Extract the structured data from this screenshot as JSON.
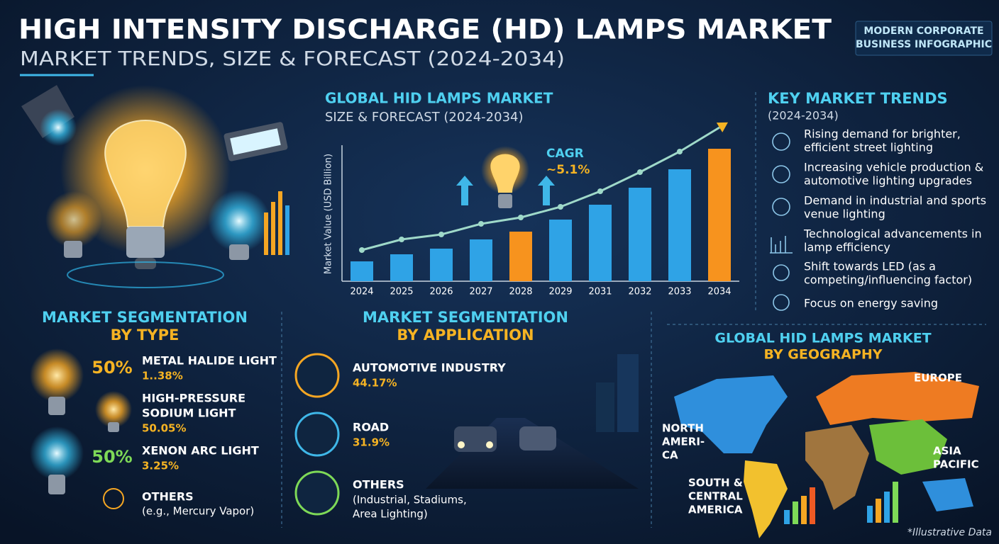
{
  "header": {
    "title": "HIGH INTENSITY DISCHARGE (HD) LAMPS MARKET",
    "subtitle": "MARKET TRENDS, SIZE & FORECAST (2024-2034)",
    "badge": [
      "MODERN CORPORATE",
      "BUSINESS INFOGRAPHIC"
    ]
  },
  "chart_data": {
    "type": "bar",
    "title": "GLOBAL HID LAMPS MARKET",
    "subtitle": "SIZE & FORECAST (2024-2034)",
    "y_label": "Market Value (USD Billion)",
    "categories": [
      "2024",
      "2025",
      "2026",
      "2027",
      "2028",
      "2029",
      "2031",
      "2032",
      "2033",
      "2034"
    ],
    "values": [
      28,
      38,
      46,
      59,
      70,
      87,
      108,
      132,
      158,
      187
    ],
    "colors": [
      "#2fa3e6",
      "#2fa3e6",
      "#2fa3e6",
      "#2fa3e6",
      "#f7931e",
      "#2fa3e6",
      "#2fa3e6",
      "#2fa3e6",
      "#2fa3e6",
      "#f7931e"
    ],
    "trend_values": [
      44,
      59,
      66,
      81,
      90,
      105,
      127,
      154,
      183,
      217
    ],
    "trend_color": "#9fd9c9",
    "ylim": [
      0,
      220
    ],
    "annotation": {
      "label": "CAGR",
      "value": "~5.1%"
    }
  },
  "trends": {
    "title": "KEY MARKET TRENDS",
    "subtitle": "(2024-2034)",
    "items": [
      [
        "Rising demand for brighter,",
        "efficient street lighting"
      ],
      [
        "Increasing vehicle production &",
        "automotive lighting upgrades"
      ],
      [
        "Demand in industrial and sports",
        "venue lighting"
      ],
      [
        "Technological advancements in",
        "lamp efficiency"
      ],
      [
        "Shift towards LED (as a",
        "competing/influencing factor)"
      ],
      [
        "Focus on energy saving"
      ]
    ]
  },
  "segmentation_type": {
    "title": [
      "MARKET SEGMENTATION",
      "BY TYPE"
    ],
    "items": [
      {
        "badge": "50%",
        "name": [
          "METAL HALIDE LIGHT"
        ],
        "value": "1..38%"
      },
      {
        "name": [
          "HIGH-PRESSURE",
          "SODIUM LIGHT"
        ],
        "value": "50.05%"
      },
      {
        "badge": "50%",
        "name": [
          "XENON ARC LIGHT"
        ],
        "value": "3.25%"
      },
      {
        "name": [
          "OTHERS"
        ],
        "note": "(e.g., Mercury Vapor)"
      }
    ]
  },
  "segmentation_application": {
    "title": [
      "MARKET SEGMENTATION",
      "BY APPLICATION"
    ],
    "items": [
      {
        "name": "AUTOMOTIVE INDUSTRY",
        "value": "44.17%"
      },
      {
        "name": "ROAD",
        "value": "31.9%"
      },
      {
        "name": "OTHERS",
        "note": [
          "(Industrial, Stadiums,",
          "Area Lighting)"
        ]
      }
    ]
  },
  "geography": {
    "title": [
      "GLOBAL HID LAMPS MARKET",
      "BY GEOGRAPHY"
    ],
    "regions": [
      {
        "label": [
          "EUROPE"
        ]
      },
      {
        "label": [
          "NORTH",
          "AMERI-",
          "CA"
        ]
      },
      {
        "label": [
          "ASIA",
          "PACIFIC"
        ]
      },
      {
        "label": [
          "SOUTH &",
          "CENTRAL",
          "AMERICA"
        ]
      }
    ],
    "footnote": "*Illustrative Data"
  }
}
